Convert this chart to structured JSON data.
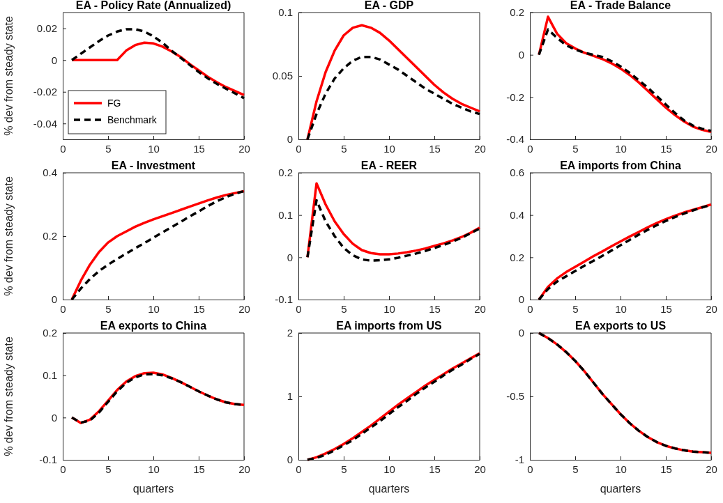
{
  "chart_data": [
    {
      "type": "line",
      "title": "EA - Policy Rate (Annualized)",
      "ylabel": "% dev from steady state",
      "x": [
        1,
        2,
        3,
        4,
        5,
        6,
        7,
        8,
        9,
        10,
        11,
        12,
        13,
        14,
        15,
        16,
        17,
        18,
        19,
        20
      ],
      "xlim": [
        0,
        20
      ],
      "xticks": [
        0,
        5,
        10,
        15,
        20
      ],
      "ylim": [
        -0.05,
        0.03
      ],
      "yticks": [
        -0.04,
        -0.02,
        0,
        0.02
      ],
      "legend": "bottom left",
      "series": [
        {
          "name": "FG",
          "color": "#ff0000",
          "line_style": "solid",
          "values": [
            0,
            0,
            0,
            0,
            0,
            0,
            0.006,
            0.0095,
            0.011,
            0.0105,
            0.0085,
            0.0055,
            0.002,
            -0.0025,
            -0.0065,
            -0.0105,
            -0.014,
            -0.017,
            -0.0195,
            -0.022
          ]
        },
        {
          "name": "Benchmark",
          "color": "#000000",
          "line_style": "dashed",
          "values": [
            0,
            0.004,
            0.008,
            0.012,
            0.0155,
            0.018,
            0.0195,
            0.0195,
            0.018,
            0.015,
            0.011,
            0.006,
            0.0015,
            -0.003,
            -0.0075,
            -0.0115,
            -0.015,
            -0.018,
            -0.021,
            -0.024
          ]
        }
      ]
    },
    {
      "type": "line",
      "title": "EA - GDP",
      "x": [
        1,
        2,
        3,
        4,
        5,
        6,
        7,
        8,
        9,
        10,
        11,
        12,
        13,
        14,
        15,
        16,
        17,
        18,
        19,
        20
      ],
      "xlim": [
        0,
        20
      ],
      "xticks": [
        0,
        5,
        10,
        15,
        20
      ],
      "ylim": [
        0,
        0.1
      ],
      "yticks": [
        0,
        0.05,
        0.1
      ],
      "series": [
        {
          "color": "#ff0000",
          "line_style": "solid",
          "values": [
            0,
            0.03,
            0.053,
            0.07,
            0.082,
            0.088,
            0.09,
            0.088,
            0.084,
            0.078,
            0.071,
            0.064,
            0.057,
            0.05,
            0.043,
            0.037,
            0.032,
            0.028,
            0.025,
            0.022
          ]
        },
        {
          "color": "#000000",
          "line_style": "dashed",
          "values": [
            0,
            0.02,
            0.036,
            0.048,
            0.056,
            0.062,
            0.065,
            0.065,
            0.063,
            0.059,
            0.055,
            0.05,
            0.045,
            0.04,
            0.036,
            0.032,
            0.028,
            0.025,
            0.022,
            0.02
          ]
        }
      ]
    },
    {
      "type": "line",
      "title": "EA - Trade Balance",
      "x": [
        1,
        2,
        3,
        4,
        5,
        6,
        7,
        8,
        9,
        10,
        11,
        12,
        13,
        14,
        15,
        16,
        17,
        18,
        19,
        20
      ],
      "xlim": [
        0,
        20
      ],
      "xticks": [
        0,
        5,
        10,
        15,
        20
      ],
      "ylim": [
        -0.4,
        0.2
      ],
      "yticks": [
        -0.4,
        -0.2,
        0,
        0.2
      ],
      "series": [
        {
          "color": "#ff0000",
          "line_style": "solid",
          "values": [
            0,
            0.18,
            0.1,
            0.055,
            0.03,
            0.01,
            -0.005,
            -0.02,
            -0.04,
            -0.065,
            -0.095,
            -0.13,
            -0.17,
            -0.21,
            -0.25,
            -0.285,
            -0.315,
            -0.34,
            -0.355,
            -0.365
          ]
        },
        {
          "color": "#000000",
          "line_style": "dashed",
          "values": [
            0,
            0.12,
            0.08,
            0.045,
            0.025,
            0.01,
            0,
            -0.01,
            -0.03,
            -0.055,
            -0.085,
            -0.12,
            -0.155,
            -0.195,
            -0.235,
            -0.275,
            -0.31,
            -0.335,
            -0.35,
            -0.36
          ]
        }
      ]
    },
    {
      "type": "line",
      "title": "EA - Investment",
      "ylabel": "% dev from steady state",
      "x": [
        1,
        2,
        3,
        4,
        5,
        6,
        7,
        8,
        9,
        10,
        11,
        12,
        13,
        14,
        15,
        16,
        17,
        18,
        19,
        20
      ],
      "xlim": [
        0,
        20
      ],
      "xticks": [
        0,
        5,
        10,
        15,
        20
      ],
      "ylim": [
        0,
        0.4
      ],
      "yticks": [
        0,
        0.2,
        0.4
      ],
      "series": [
        {
          "color": "#ff0000",
          "line_style": "solid",
          "values": [
            0,
            0.06,
            0.11,
            0.15,
            0.18,
            0.2,
            0.215,
            0.23,
            0.242,
            0.253,
            0.263,
            0.273,
            0.283,
            0.293,
            0.303,
            0.313,
            0.322,
            0.33,
            0.336,
            0.342
          ]
        },
        {
          "color": "#000000",
          "line_style": "dashed",
          "values": [
            0,
            0.035,
            0.065,
            0.09,
            0.11,
            0.128,
            0.145,
            0.162,
            0.178,
            0.195,
            0.212,
            0.228,
            0.245,
            0.262,
            0.278,
            0.295,
            0.31,
            0.323,
            0.334,
            0.342
          ]
        }
      ]
    },
    {
      "type": "line",
      "title": "EA - REER",
      "x": [
        1,
        2,
        3,
        4,
        5,
        6,
        7,
        8,
        9,
        10,
        11,
        12,
        13,
        14,
        15,
        16,
        17,
        18,
        19,
        20
      ],
      "xlim": [
        0,
        20
      ],
      "xticks": [
        0,
        5,
        10,
        15,
        20
      ],
      "ylim": [
        -0.1,
        0.2
      ],
      "yticks": [
        -0.1,
        0,
        0.1,
        0.2
      ],
      "series": [
        {
          "color": "#ff0000",
          "line_style": "solid",
          "values": [
            0,
            0.175,
            0.125,
            0.085,
            0.055,
            0.032,
            0.017,
            0.01,
            0.007,
            0.007,
            0.009,
            0.012,
            0.016,
            0.021,
            0.027,
            0.033,
            0.04,
            0.048,
            0.058,
            0.07
          ]
        },
        {
          "color": "#000000",
          "line_style": "dashed",
          "values": [
            0,
            0.135,
            0.085,
            0.05,
            0.022,
            0.005,
            -0.005,
            -0.008,
            -0.007,
            -0.005,
            -0.001,
            0.004,
            0.009,
            0.015,
            0.022,
            0.029,
            0.037,
            0.046,
            0.057,
            0.068
          ]
        }
      ]
    },
    {
      "type": "line",
      "title": "EA imports from China",
      "x": [
        1,
        2,
        3,
        4,
        5,
        6,
        7,
        8,
        9,
        10,
        11,
        12,
        13,
        14,
        15,
        16,
        17,
        18,
        19,
        20
      ],
      "xlim": [
        0,
        20
      ],
      "xticks": [
        0,
        5,
        10,
        15,
        20
      ],
      "ylim": [
        0,
        0.6
      ],
      "yticks": [
        0,
        0.2,
        0.4,
        0.6
      ],
      "series": [
        {
          "color": "#ff0000",
          "line_style": "solid",
          "values": [
            0,
            0.06,
            0.1,
            0.13,
            0.155,
            0.18,
            0.205,
            0.228,
            0.252,
            0.275,
            0.298,
            0.32,
            0.342,
            0.362,
            0.38,
            0.397,
            0.412,
            0.425,
            0.437,
            0.45
          ]
        },
        {
          "color": "#000000",
          "line_style": "dashed",
          "values": [
            0,
            0.05,
            0.085,
            0.11,
            0.135,
            0.16,
            0.183,
            0.207,
            0.232,
            0.257,
            0.282,
            0.307,
            0.33,
            0.352,
            0.372,
            0.39,
            0.407,
            0.422,
            0.436,
            0.448
          ]
        }
      ]
    },
    {
      "type": "line",
      "title": "EA exports to China",
      "ylabel": "% dev from steady state",
      "xlabel": "quarters",
      "x": [
        1,
        2,
        3,
        4,
        5,
        6,
        7,
        8,
        9,
        10,
        11,
        12,
        13,
        14,
        15,
        16,
        17,
        18,
        19,
        20
      ],
      "xlim": [
        0,
        20
      ],
      "xticks": [
        0,
        5,
        10,
        15,
        20
      ],
      "ylim": [
        -0.1,
        0.2
      ],
      "yticks": [
        -0.1,
        0,
        0.1,
        0.2
      ],
      "series": [
        {
          "color": "#ff0000",
          "line_style": "solid",
          "values": [
            0,
            -0.013,
            -0.005,
            0.015,
            0.04,
            0.065,
            0.085,
            0.098,
            0.105,
            0.106,
            0.102,
            0.094,
            0.084,
            0.073,
            0.062,
            0.052,
            0.043,
            0.036,
            0.032,
            0.03
          ]
        },
        {
          "color": "#000000",
          "line_style": "dashed",
          "values": [
            0,
            -0.012,
            -0.007,
            0.012,
            0.037,
            0.062,
            0.082,
            0.095,
            0.102,
            0.103,
            0.1,
            0.093,
            0.084,
            0.073,
            0.062,
            0.052,
            0.043,
            0.036,
            0.032,
            0.03
          ]
        }
      ]
    },
    {
      "type": "line",
      "title": "EA imports from US",
      "xlabel": "quarters",
      "x": [
        1,
        2,
        3,
        4,
        5,
        6,
        7,
        8,
        9,
        10,
        11,
        12,
        13,
        14,
        15,
        16,
        17,
        18,
        19,
        20
      ],
      "xlim": [
        0,
        20
      ],
      "xticks": [
        0,
        5,
        10,
        15,
        20
      ],
      "ylim": [
        0,
        2
      ],
      "yticks": [
        0,
        1,
        2
      ],
      "series": [
        {
          "color": "#ff0000",
          "line_style": "solid",
          "values": [
            0,
            0.04,
            0.1,
            0.17,
            0.25,
            0.34,
            0.44,
            0.54,
            0.65,
            0.76,
            0.87,
            0.97,
            1.07,
            1.17,
            1.26,
            1.35,
            1.44,
            1.52,
            1.6,
            1.68
          ]
        },
        {
          "color": "#000000",
          "line_style": "dashed",
          "values": [
            0,
            0.03,
            0.08,
            0.15,
            0.23,
            0.31,
            0.41,
            0.51,
            0.61,
            0.72,
            0.83,
            0.93,
            1.04,
            1.14,
            1.23,
            1.33,
            1.42,
            1.5,
            1.59,
            1.67
          ]
        }
      ]
    },
    {
      "type": "line",
      "title": "EA exports to US",
      "xlabel": "quarters",
      "x": [
        1,
        2,
        3,
        4,
        5,
        6,
        7,
        8,
        9,
        10,
        11,
        12,
        13,
        14,
        15,
        16,
        17,
        18,
        19,
        20
      ],
      "xlim": [
        0,
        20
      ],
      "xticks": [
        0,
        5,
        10,
        15,
        20
      ],
      "ylim": [
        -1,
        0
      ],
      "yticks": [
        -1,
        -0.5,
        0
      ],
      "series": [
        {
          "color": "#ff0000",
          "line_style": "solid",
          "values": [
            0,
            -0.04,
            -0.09,
            -0.15,
            -0.22,
            -0.3,
            -0.39,
            -0.48,
            -0.56,
            -0.64,
            -0.71,
            -0.77,
            -0.82,
            -0.86,
            -0.89,
            -0.91,
            -0.925,
            -0.935,
            -0.94,
            -0.945
          ]
        },
        {
          "color": "#000000",
          "line_style": "dashed",
          "values": [
            0,
            -0.04,
            -0.09,
            -0.15,
            -0.22,
            -0.3,
            -0.39,
            -0.48,
            -0.56,
            -0.64,
            -0.71,
            -0.77,
            -0.82,
            -0.86,
            -0.89,
            -0.91,
            -0.925,
            -0.935,
            -0.94,
            -0.945
          ]
        }
      ]
    }
  ]
}
